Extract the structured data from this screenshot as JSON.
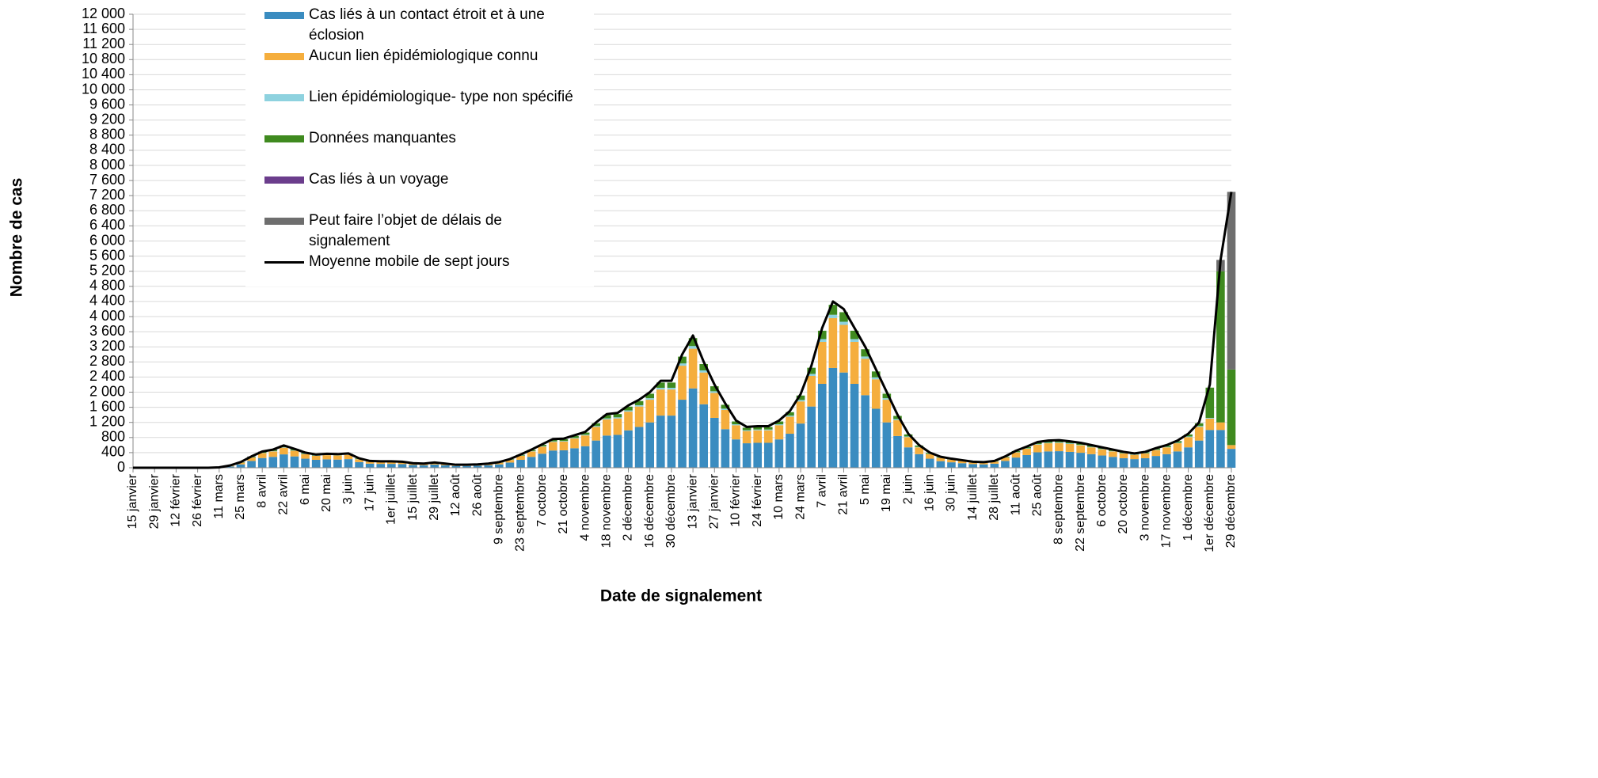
{
  "chart_data": {
    "type": "bar",
    "stacked": true,
    "x_label": "Date de signalement",
    "y_label": "Nombre de cas",
    "grid": true,
    "legend": "top-left",
    "ylim": [
      0,
      12000
    ],
    "yticks": [
      0,
      400,
      800,
      {
        "value": 1200,
        "label": "1 200"
      },
      {
        "value": 1600,
        "label": "1 600"
      },
      {
        "value": 2000,
        "label": "2 000"
      },
      {
        "value": 2400,
        "label": "2 400"
      },
      {
        "value": 2800,
        "label": "2 800"
      },
      {
        "value": 3200,
        "label": "3 200"
      },
      {
        "value": 3600,
        "label": "3 600"
      },
      {
        "value": 4000,
        "label": "4 000"
      },
      {
        "value": 4400,
        "label": "4 400"
      },
      {
        "value": 4800,
        "label": "4 800"
      },
      {
        "value": 5200,
        "label": "5 200"
      },
      {
        "value": 5600,
        "label": "5 600"
      },
      {
        "value": 6000,
        "label": "6 000"
      },
      {
        "value": 6400,
        "label": "6 400"
      },
      {
        "value": 6800,
        "label": "6 800"
      },
      {
        "value": 7200,
        "label": "7 200"
      },
      {
        "value": 7600,
        "label": "7 600"
      },
      {
        "value": 8000,
        "label": "8 000"
      },
      {
        "value": 8400,
        "label": "8 400"
      },
      {
        "value": 8800,
        "label": "8 800"
      },
      {
        "value": 9200,
        "label": "9 200"
      },
      {
        "value": 9600,
        "label": "9 600"
      },
      {
        "value": 10000,
        "label": "10 000"
      },
      {
        "value": 10400,
        "label": "10 400"
      },
      {
        "value": 10800,
        "label": "10 800"
      },
      {
        "value": 11200,
        "label": "11 200"
      },
      {
        "value": 11600,
        "label": "11 600"
      },
      {
        "value": 12000,
        "label": "12 000"
      }
    ],
    "categories": [
      "15 janvier",
      null,
      "29 janvier",
      null,
      "12 février",
      null,
      "26 février",
      null,
      "11 mars",
      null,
      "25 mars",
      null,
      "8 avril",
      null,
      "22 avril",
      null,
      "6 mai",
      null,
      "20 mai",
      null,
      "3 juin",
      null,
      "17 juin",
      null,
      "1er juillet",
      null,
      "15 juillet",
      null,
      "29 juillet",
      null,
      "12 août",
      null,
      "26 août",
      null,
      "9 septembre",
      null,
      "23 septembre",
      null,
      "7 octobre",
      null,
      "21 octobre",
      null,
      "4 novembre",
      null,
      "18 novembre",
      null,
      "2 décembre",
      null,
      "16 décembre",
      null,
      "30 décembre",
      null,
      "13 janvier",
      null,
      "27 janvier",
      null,
      "10 février",
      null,
      "24 février",
      null,
      "10 mars",
      null,
      "24 mars",
      null,
      "7 avril",
      null,
      "21 avril",
      null,
      "5 mai",
      null,
      "19 mai",
      null,
      "2 juin",
      null,
      "16 juin",
      null,
      "30 juin",
      null,
      "14 juillet",
      null,
      "28 juillet",
      null,
      "11 août",
      null,
      "25 août",
      null,
      "8 septembre",
      null,
      "22 septembre",
      null,
      "6 octobre",
      null,
      "20 octobre",
      null,
      "3 novembre",
      null,
      "17 novembre",
      null,
      "1 décembre",
      null,
      "1er décembre",
      null,
      "29 décembre"
    ],
    "series": [
      {
        "name": "Cas liés à un contact étroit et à une éclosion",
        "color": "#3a8cc0",
        "values": [
          0,
          0,
          0,
          0,
          0,
          0,
          0,
          0,
          6,
          36,
          90,
          180,
          258,
          288,
          354,
          300,
          240,
          210,
          222,
          216,
          228,
          150,
          108,
          102,
          102,
          96,
          72,
          66,
          84,
          66,
          48,
          48,
          54,
          66,
          90,
          138,
          210,
          288,
          372,
          456,
          462,
          516,
          570,
          720,
          852,
          870,
          990,
          1080,
          1200,
          1380,
          1380,
          1800,
          2100,
          1680,
          1320,
          1020,
          750,
          648,
          660,
          660,
          750,
          900,
          1170,
          1620,
          2220,
          2640,
          2520,
          2220,
          1920,
          1560,
          1200,
          840,
          540,
          360,
          240,
          174,
          144,
          120,
          96,
          90,
          108,
          180,
          270,
          336,
          408,
          432,
          438,
          420,
          396,
          360,
          324,
          288,
          252,
          228,
          252,
          312,
          360,
          432,
          540,
          720,
          1000,
          1000,
          500
        ]
      },
      {
        "name": "Aucun lien épidémiologique connu",
        "color": "#f5ae3d",
        "values": [
          0,
          0,
          0,
          0,
          0,
          0,
          0,
          0,
          3,
          18,
          45,
          90,
          129,
          144,
          177,
          150,
          120,
          105,
          111,
          108,
          114,
          75,
          54,
          51,
          51,
          48,
          36,
          33,
          42,
          33,
          24,
          24,
          27,
          33,
          45,
          69,
          105,
          144,
          186,
          228,
          231,
          258,
          285,
          360,
          426,
          435,
          495,
          540,
          600,
          690,
          690,
          900,
          1050,
          840,
          660,
          510,
          375,
          324,
          330,
          330,
          375,
          450,
          585,
          810,
          1110,
          1320,
          1260,
          1110,
          960,
          780,
          600,
          420,
          270,
          180,
          120,
          87,
          72,
          60,
          48,
          45,
          54,
          90,
          135,
          168,
          204,
          216,
          219,
          210,
          198,
          180,
          162,
          144,
          126,
          114,
          126,
          156,
          180,
          216,
          270,
          360,
          300,
          200,
          100
        ]
      },
      {
        "name": "Lien épidémiologique- type non spécifié",
        "color": "#8ed2df",
        "values": [
          0,
          0,
          0,
          0,
          0,
          0,
          0,
          0,
          0,
          1,
          3,
          6,
          9,
          10,
          12,
          10,
          8,
          7,
          7,
          7,
          8,
          5,
          4,
          3,
          3,
          3,
          2,
          2,
          3,
          2,
          2,
          2,
          2,
          2,
          3,
          5,
          7,
          10,
          12,
          15,
          15,
          17,
          19,
          24,
          28,
          29,
          33,
          36,
          40,
          46,
          46,
          60,
          70,
          56,
          44,
          34,
          25,
          22,
          22,
          22,
          25,
          30,
          39,
          54,
          74,
          88,
          84,
          74,
          64,
          52,
          40,
          28,
          18,
          12,
          8,
          6,
          5,
          4,
          3,
          3,
          4,
          6,
          9,
          11,
          14,
          14,
          15,
          14,
          13,
          12,
          11,
          10,
          8,
          8,
          8,
          10,
          12,
          14,
          18,
          24,
          20,
          0,
          0
        ]
      },
      {
        "name": "Données manquantes",
        "color": "#3f8a1f",
        "values": [
          0,
          0,
          0,
          0,
          0,
          0,
          0,
          0,
          1,
          4,
          9,
          18,
          26,
          29,
          35,
          30,
          24,
          21,
          22,
          22,
          23,
          15,
          11,
          10,
          10,
          10,
          7,
          7,
          8,
          7,
          5,
          5,
          5,
          7,
          9,
          14,
          21,
          29,
          37,
          46,
          46,
          52,
          57,
          72,
          85,
          87,
          99,
          108,
          120,
          138,
          138,
          180,
          210,
          168,
          132,
          102,
          75,
          65,
          66,
          66,
          75,
          90,
          117,
          162,
          222,
          264,
          252,
          222,
          192,
          156,
          120,
          84,
          54,
          36,
          24,
          17,
          14,
          12,
          10,
          9,
          11,
          18,
          27,
          34,
          41,
          43,
          44,
          42,
          40,
          36,
          32,
          29,
          25,
          23,
          25,
          31,
          36,
          43,
          54,
          72,
          800,
          4000,
          2000
        ]
      },
      {
        "name": "Cas liés à un voyage",
        "color": "#6b3d8c",
        "values": [
          0,
          0,
          0,
          0,
          0,
          0,
          0,
          0,
          0,
          1,
          3,
          6,
          8,
          9,
          12,
          10,
          8,
          7,
          0,
          0,
          0,
          0,
          0,
          0,
          0,
          0,
          0,
          0,
          0,
          0,
          0,
          0,
          0,
          0,
          0,
          0,
          0,
          0,
          0,
          0,
          0,
          0,
          0,
          0,
          0,
          0,
          0,
          0,
          0,
          0,
          0,
          0,
          0,
          0,
          0,
          0,
          0,
          0,
          0,
          0,
          0,
          0,
          0,
          0,
          0,
          0,
          0,
          0,
          0,
          0,
          0,
          0,
          0,
          0,
          0,
          0,
          0,
          0,
          0,
          0,
          0,
          0,
          0,
          0,
          0,
          0,
          0,
          0,
          0,
          0,
          0,
          0,
          0,
          0,
          0,
          0,
          0,
          0,
          0,
          0,
          0,
          0,
          0
        ]
      },
      {
        "name": "Peut faire l’objet de délais de signalement",
        "color": "#6e6e6e",
        "values": [
          0,
          0,
          0,
          0,
          0,
          0,
          0,
          0,
          0,
          0,
          0,
          0,
          0,
          0,
          0,
          0,
          0,
          0,
          0,
          0,
          0,
          0,
          0,
          0,
          0,
          0,
          0,
          0,
          0,
          0,
          0,
          0,
          0,
          0,
          0,
          0,
          0,
          0,
          0,
          0,
          0,
          0,
          0,
          0,
          0,
          0,
          0,
          0,
          0,
          0,
          0,
          0,
          0,
          0,
          0,
          0,
          0,
          0,
          0,
          0,
          0,
          0,
          0,
          0,
          0,
          0,
          0,
          0,
          0,
          0,
          0,
          0,
          0,
          0,
          0,
          0,
          0,
          0,
          0,
          0,
          0,
          0,
          0,
          0,
          0,
          0,
          0,
          0,
          0,
          0,
          0,
          0,
          0,
          0,
          0,
          0,
          0,
          0,
          0,
          0,
          0,
          300,
          4700
        ]
      },
      {
        "name": "Moyenne mobile de sept jours",
        "color": "#000000",
        "type": "line",
        "values": [
          0,
          0,
          0,
          0,
          0,
          0,
          0,
          0,
          10,
          60,
          150,
          300,
          430,
          480,
          590,
          500,
          400,
          350,
          370,
          360,
          380,
          250,
          180,
          170,
          170,
          160,
          120,
          110,
          140,
          110,
          80,
          80,
          90,
          110,
          150,
          230,
          350,
          480,
          620,
          760,
          770,
          860,
          950,
          1200,
          1420,
          1450,
          1650,
          1800,
          2000,
          2300,
          2300,
          3000,
          3500,
          2800,
          2200,
          1700,
          1250,
          1080,
          1100,
          1100,
          1250,
          1500,
          1950,
          2700,
          3700,
          4400,
          4200,
          3700,
          3200,
          2600,
          2000,
          1400,
          900,
          600,
          400,
          290,
          240,
          200,
          160,
          150,
          180,
          300,
          450,
          560,
          680,
          720,
          730,
          700,
          660,
          600,
          540,
          480,
          420,
          380,
          420,
          520,
          600,
          720,
          900,
          1200,
          2200,
          5500,
          7300
        ]
      }
    ]
  }
}
